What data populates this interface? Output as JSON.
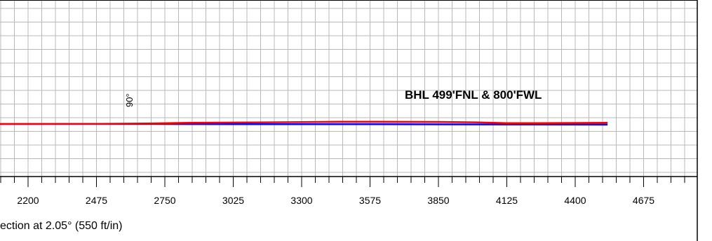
{
  "chart_data": {
    "type": "line",
    "xlabel": "ection at 2.05° (550 ft/in)",
    "x_ticks": [
      2200,
      2475,
      2750,
      3025,
      3300,
      3575,
      3850,
      4125,
      4400,
      4675
    ],
    "xlim": [
      2040,
      4920
    ],
    "annotations": [
      {
        "text": "BHL 499'FNL & 800'FWL"
      },
      {
        "text": "90°"
      }
    ],
    "series": [
      {
        "color": "#ff0000",
        "x": [
          2040,
          2500,
          2700,
          2850,
          3025,
          3300,
          3450,
          3600,
          3850,
          4000,
          4125,
          4250,
          4400,
          4530
        ],
        "y": [
          0,
          1,
          3,
          6,
          7,
          9,
          11,
          11,
          10,
          8,
          4,
          4,
          5,
          6
        ]
      },
      {
        "color": "#0000ff",
        "x": [
          2040,
          2700,
          3025,
          3575,
          4125,
          4530
        ],
        "y": [
          0,
          0,
          -1,
          -1,
          -2,
          -3
        ]
      }
    ]
  }
}
